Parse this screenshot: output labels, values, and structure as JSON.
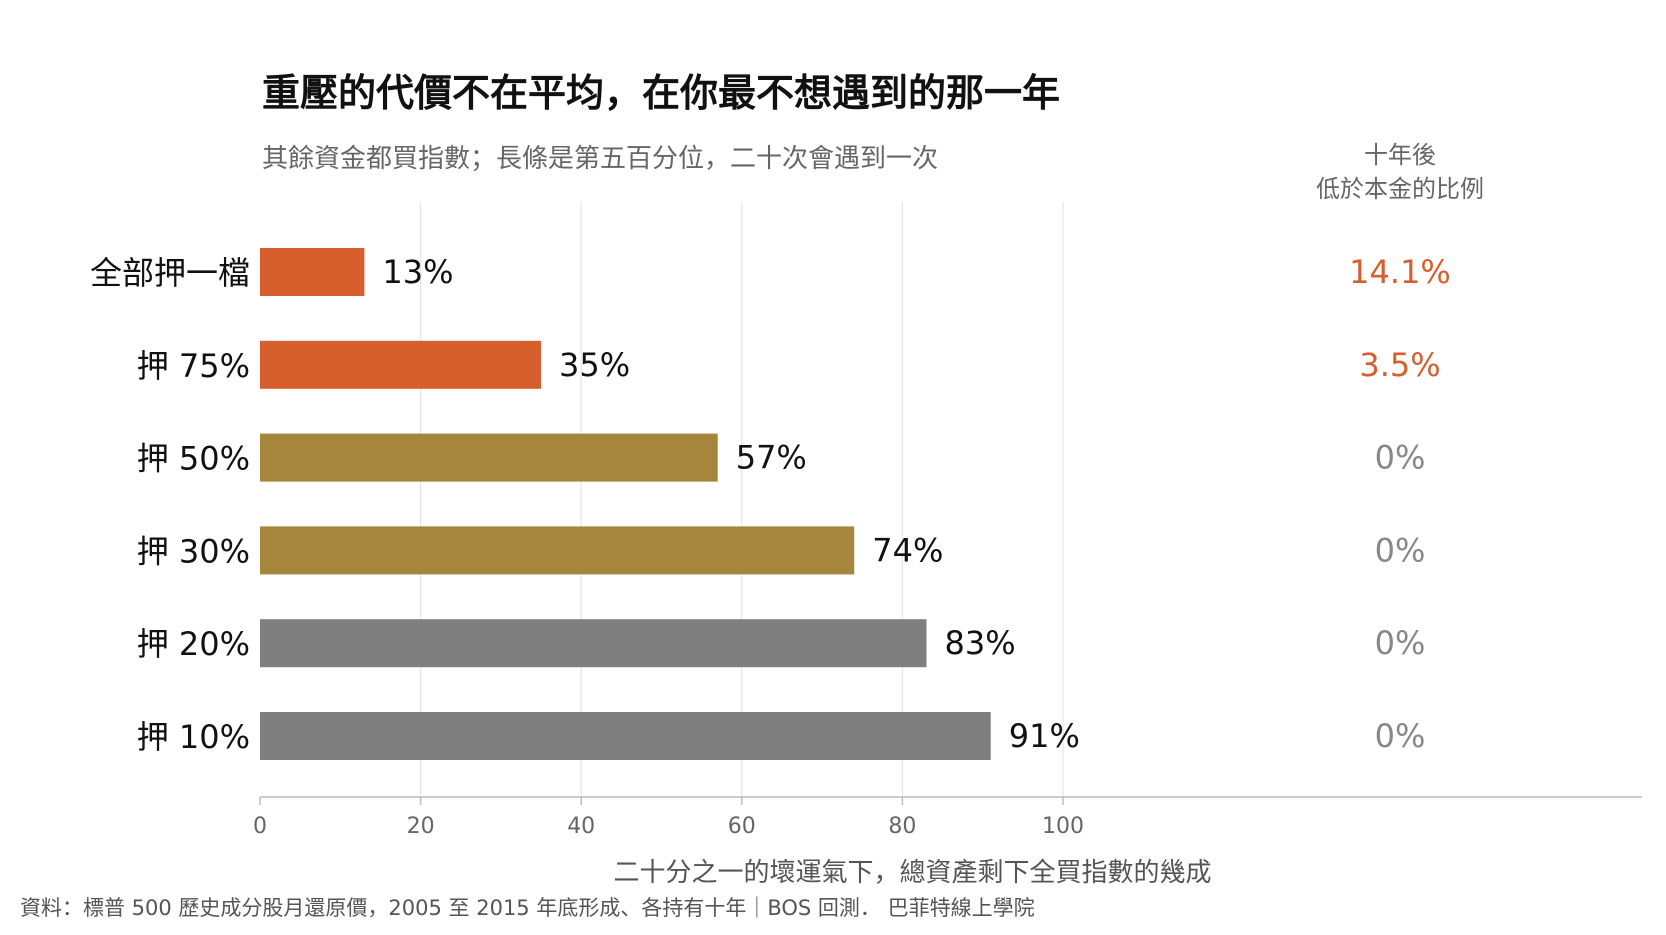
{
  "header": {
    "title": "重壓的代價不在平均，在你最不想遇到的那一年",
    "subtitle": "其餘資金都買指數；長條是第五百分位，二十次會遇到一次",
    "right_column_line1": "十年後",
    "right_column_line2": "低於本金的比例"
  },
  "footer": {
    "xlabel": "二十分之一的壞運氣下，總資產剩下全買指數的幾成",
    "source": "資料：標普 500 歷史成分股月還原價，2005 至 2015 年底形成、各持有十年｜BOS 回測．  巴菲特線上學院"
  },
  "colors": {
    "orange": "#d65f2d",
    "gold": "#a6863c",
    "gray": "#7f7f7f",
    "highlight_text": "#d65f2d",
    "muted_text": "#888888"
  },
  "chart_data": {
    "type": "bar",
    "orientation": "horizontal",
    "categories": [
      "全部押一檔",
      "押 75%",
      "押 50%",
      "押 30%",
      "押 20%",
      "押 10%"
    ],
    "values": [
      13,
      35,
      57,
      74,
      83,
      91
    ],
    "value_labels": [
      "13%",
      "35%",
      "57%",
      "74%",
      "83%",
      "91%"
    ],
    "bar_colors": [
      "orange",
      "orange",
      "gold",
      "gold",
      "gray",
      "gray"
    ],
    "right_values": [
      "14.1%",
      "3.5%",
      "0%",
      "0%",
      "0%",
      "0%"
    ],
    "right_highlight": [
      true,
      true,
      false,
      false,
      false,
      false
    ],
    "xlim": [
      0,
      100
    ],
    "xticks": [
      0,
      20,
      40,
      60,
      80,
      100
    ],
    "grid": true
  }
}
